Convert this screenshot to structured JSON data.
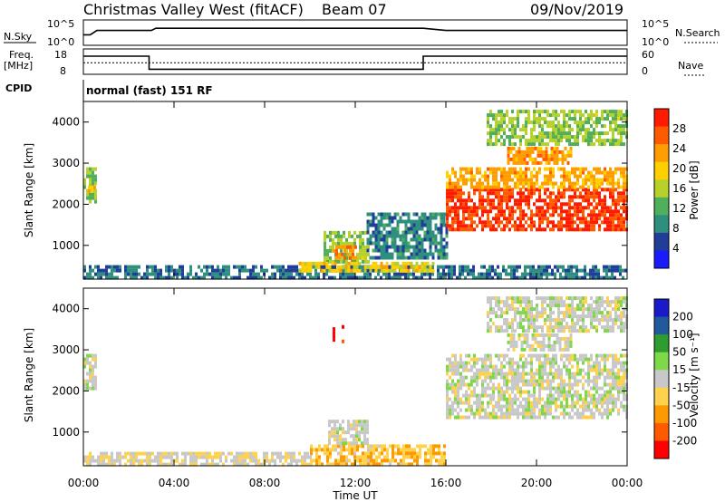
{
  "header": {
    "station": "Christmas Valley West (fitACF)",
    "beam": "Beam 07",
    "date": "09/Nov/2019"
  },
  "top_panels": {
    "nsky_label": "N.Sky",
    "nsky_ticks": [
      "10^5",
      "10^0"
    ],
    "nsearch_label": "N.Search",
    "nsearch_ticks": [
      "10^5",
      "10^0"
    ],
    "freq_label": "Freq.",
    "freq_unit": "[MHz]",
    "freq_ticks": [
      "18",
      "8"
    ],
    "nave_label": "Nave",
    "nave_ticks": [
      "60",
      "0"
    ],
    "cpid_label": "CPID",
    "cpid_text": "normal (fast) 151 RF"
  },
  "colors": {
    "power": [
      "#1a1aff",
      "#1f3d99",
      "#2f8f7f",
      "#4faf5a",
      "#b7d02a",
      "#ffd000",
      "#ff9d00",
      "#ff5a00",
      "#ff1a00"
    ],
    "velocity": [
      "#ff0000",
      "#ff5a00",
      "#ff9900",
      "#ffd24d",
      "#c8c8c8",
      "#7fd84a",
      "#2e9c2e",
      "#205a9c",
      "#1a1acc"
    ]
  },
  "chart_data": [
    {
      "type": "line",
      "name": "nsky-panel",
      "ylabel": "N.Sky",
      "x_hours": [
        0,
        0.3,
        0.6,
        3.0,
        3.2,
        15.0,
        16.0,
        24.0
      ],
      "y": [
        2,
        2,
        3,
        3,
        3.5,
        3.5,
        3,
        3
      ]
    },
    {
      "type": "line",
      "name": "frequency-panel",
      "ylabel": "Freq. [MHz]",
      "ylim": [
        8,
        18
      ],
      "x_hours": [
        0,
        2.9,
        2.9,
        15.0,
        15.0,
        24.0
      ],
      "y": [
        15.5,
        15.5,
        9.5,
        9.5,
        15.5,
        15.5
      ],
      "nave_dotted": 12.5
    },
    {
      "type": "heatmap",
      "name": "power-panel",
      "ylabel": "Slant Range [km]",
      "ylim": [
        180,
        4500
      ],
      "yticks": [
        1000,
        2000,
        3000,
        4000
      ],
      "colorbar_label": "Power [dB]",
      "colorbar_ticks": [
        "28",
        "24",
        "20",
        "16",
        "12",
        "8",
        "4"
      ],
      "clim": [
        0,
        30
      ],
      "regions": [
        {
          "t0": 0.0,
          "t1": 24.0,
          "r0": 180,
          "r1": 520,
          "value": 7
        },
        {
          "t0": 0.0,
          "t1": 0.6,
          "r0": 2100,
          "r1": 2900,
          "value": 14
        },
        {
          "t0": 0.2,
          "t1": 0.45,
          "r0": 2150,
          "r1": 2450,
          "value": 20
        },
        {
          "t0": 10.6,
          "t1": 12.6,
          "r0": 600,
          "r1": 1350,
          "value": 14
        },
        {
          "t0": 11.0,
          "t1": 12.0,
          "r0": 700,
          "r1": 1000,
          "value": 23
        },
        {
          "t0": 9.5,
          "t1": 15.5,
          "r0": 350,
          "r1": 600,
          "value": 18
        },
        {
          "t0": 12.5,
          "t1": 16.0,
          "r0": 700,
          "r1": 1800,
          "value": 8
        },
        {
          "t0": 16.0,
          "t1": 24.0,
          "r0": 1400,
          "r1": 2400,
          "value": 27
        },
        {
          "t0": 16.0,
          "t1": 24.0,
          "r0": 2400,
          "r1": 2900,
          "value": 21
        },
        {
          "t0": 18.7,
          "t1": 21.5,
          "r0": 3000,
          "r1": 3400,
          "value": 22
        },
        {
          "t0": 17.8,
          "t1": 24.0,
          "r0": 3500,
          "r1": 4300,
          "value": 14
        }
      ]
    },
    {
      "type": "heatmap",
      "name": "velocity-panel",
      "xlabel": "Time UT",
      "ylabel": "Slant Range [km]",
      "ylim": [
        180,
        4500
      ],
      "yticks": [
        1000,
        2000,
        3000,
        4000
      ],
      "colorbar_label": "Velocity [m s⁻¹]",
      "colorbar_ticks": [
        "200",
        "100",
        "50",
        "15",
        "-15",
        "-50",
        "-100",
        "-200"
      ],
      "clim": [
        -250,
        250
      ],
      "xticks": [
        "00:00",
        "04:00",
        "08:00",
        "12:00",
        "16:00",
        "20:00",
        "00:00"
      ],
      "xrange_hours": [
        0,
        24
      ],
      "regions": [
        {
          "t0": 0.0,
          "t1": 10.0,
          "r0": 180,
          "r1": 520,
          "value": -20
        },
        {
          "t0": 10.0,
          "t1": 16.0,
          "r0": 180,
          "r1": 700,
          "value": -70
        },
        {
          "t0": 0.0,
          "t1": 0.6,
          "r0": 2100,
          "r1": 2900,
          "value": 0
        },
        {
          "t0": 10.8,
          "t1": 12.5,
          "r0": 700,
          "r1": 1300,
          "value": 0
        },
        {
          "t0": 16.0,
          "t1": 24.0,
          "r0": 1400,
          "r1": 2900,
          "value": 0
        },
        {
          "t0": 18.7,
          "t1": 21.5,
          "r0": 3000,
          "r1": 3400,
          "value": 0
        },
        {
          "t0": 17.8,
          "t1": 24.0,
          "r0": 3500,
          "r1": 4300,
          "value": 0
        },
        {
          "t0": 11.0,
          "t1": 11.1,
          "r0": 3200,
          "r1": 3550,
          "value": -200
        },
        {
          "t0": 11.4,
          "t1": 11.5,
          "r0": 3200,
          "r1": 3600,
          "value": -200
        }
      ]
    }
  ]
}
